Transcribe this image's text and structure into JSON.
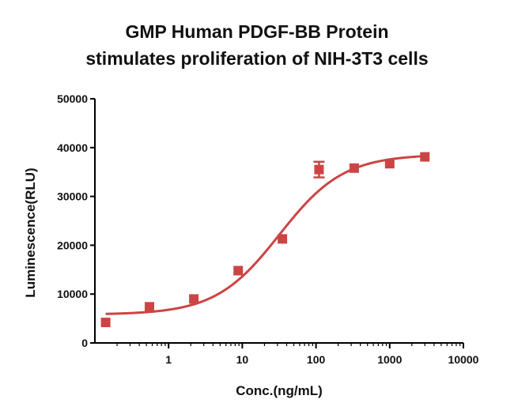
{
  "chart_data": {
    "type": "scatter",
    "title": [
      "GMP Human PDGF-BB Protein",
      "stimulates proliferation of NIH-3T3 cells"
    ],
    "xlabel": "Conc.(ng/mL)",
    "ylabel": "Luminescence(RLU)",
    "x_scale": "log",
    "xlim": [
      0.1,
      10000
    ],
    "ylim": [
      0,
      50000
    ],
    "x_ticks": [
      1,
      10,
      100,
      1000,
      10000
    ],
    "x_tick_labels": [
      "1",
      "10",
      "100",
      "1000",
      "10000"
    ],
    "y_ticks": [
      0,
      10000,
      20000,
      30000,
      40000,
      50000
    ],
    "y_tick_labels": [
      "0",
      "10000",
      "20000",
      "30000",
      "40000",
      "50000"
    ],
    "series": [
      {
        "color": "#cc4444",
        "marker": "square",
        "x": [
          0.14,
          0.55,
          2.2,
          8.8,
          35,
          110,
          330,
          1000,
          3000
        ],
        "y": [
          4200,
          7400,
          9000,
          14800,
          21300,
          35500,
          35800,
          36700,
          38100
        ],
        "y_err": [
          0,
          0,
          0,
          0,
          0,
          1600,
          0,
          0,
          0
        ]
      }
    ],
    "fit_curve": {
      "type": "4PL",
      "bottom": 5800,
      "top": 38600,
      "ec50": 32,
      "hill": 1.0,
      "color": "#cc4444"
    }
  }
}
